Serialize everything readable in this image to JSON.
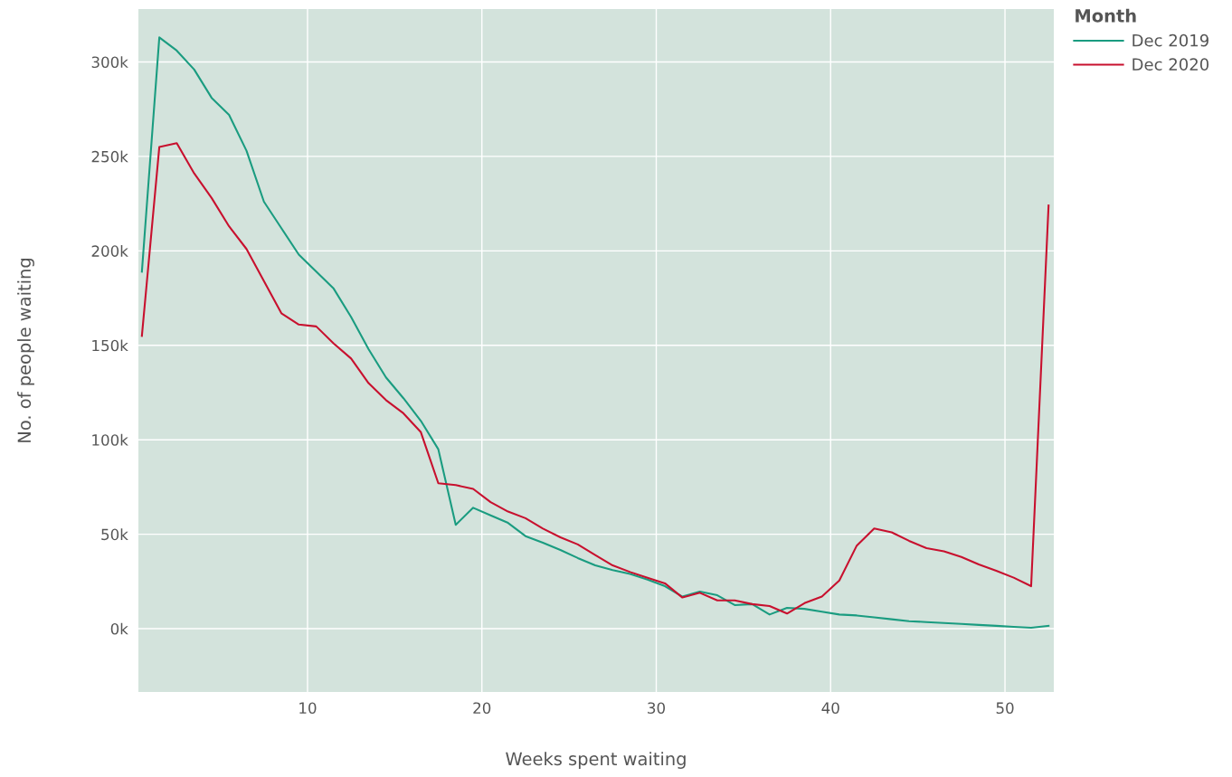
{
  "chart_data": {
    "type": "line",
    "xlabel": "Weeks spent waiting",
    "ylabel": "No. of people waiting",
    "legend_title": "Month",
    "legend": "top right",
    "grid": true,
    "x": [
      0.5,
      1.5,
      2.5,
      3.5,
      4.5,
      5.5,
      6.5,
      7.5,
      8.5,
      9.5,
      10.5,
      11.5,
      12.5,
      13.5,
      14.5,
      15.5,
      16.5,
      17.5,
      18.5,
      19.5,
      20.5,
      21.5,
      22.5,
      23.5,
      24.5,
      25.5,
      26.5,
      27.5,
      28.5,
      29.5,
      30.5,
      31.5,
      32.5,
      33.5,
      34.5,
      35.5,
      36.5,
      37.5,
      38.5,
      39.5,
      40.5,
      41.5,
      42.5,
      43.5,
      44.5,
      45.5,
      46.5,
      47.5,
      48.5,
      49.5,
      50.5,
      51.5,
      52.5
    ],
    "series": [
      {
        "name": "Dec 2019",
        "color": "#1a9c80",
        "values": [
          189,
          313,
          306,
          296,
          281,
          272,
          253,
          226,
          212,
          198,
          189,
          180,
          165,
          148,
          133,
          122,
          110,
          95,
          55,
          64,
          60,
          56,
          49,
          45.5,
          41.7,
          37.4,
          33.5,
          31,
          29,
          26,
          22.5,
          17,
          19.6,
          17.7,
          12.5,
          13,
          7.5,
          11,
          10.5,
          9,
          7.5,
          7,
          6,
          5,
          4,
          3.5,
          3,
          2.5,
          2,
          1.5,
          1,
          0.5,
          1.5
        ]
      },
      {
        "name": "Dec 2020",
        "color": "#c8102e",
        "values": [
          155,
          255,
          257,
          241,
          228,
          213,
          201,
          184,
          167,
          161,
          160,
          151,
          143,
          130,
          121,
          114,
          104,
          77,
          76,
          74,
          67,
          62,
          58.5,
          53,
          48.4,
          44.6,
          39,
          33.5,
          30,
          27,
          24,
          16.5,
          19,
          15,
          15,
          13,
          12,
          8,
          13.5,
          17,
          25.5,
          44,
          53,
          51,
          46.5,
          42.6,
          41,
          38,
          34,
          30.7,
          27,
          22.5,
          224
        ]
      }
    ],
    "xlim": [
      0.3,
      52.8
    ],
    "xticks": [
      10,
      20,
      30,
      40,
      50
    ],
    "ylim": [
      -33.5,
      328
    ],
    "yticks": [
      {
        "value": 0,
        "label": "0k"
      },
      {
        "value": 50,
        "label": "50k"
      },
      {
        "value": 100,
        "label": "100k"
      },
      {
        "value": 150,
        "label": "150k"
      },
      {
        "value": 200,
        "label": "200k"
      },
      {
        "value": 250,
        "label": "250k"
      },
      {
        "value": 300,
        "label": "300k"
      }
    ]
  }
}
